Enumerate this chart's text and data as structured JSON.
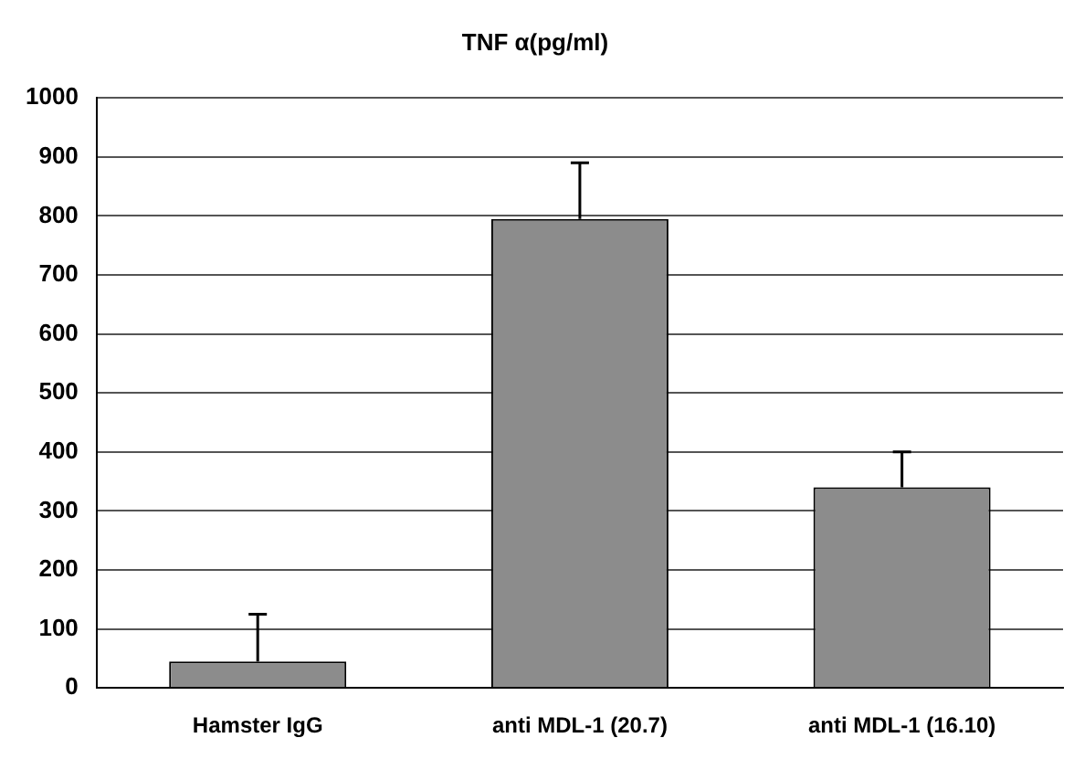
{
  "chart_data": {
    "type": "bar",
    "title": "TNF α(pg/ml)",
    "categories": [
      "Hamster IgG",
      "anti MDL-1 (20.7)",
      "anti MDL-1 (16.10)"
    ],
    "values": [
      45,
      795,
      340
    ],
    "errors": [
      [
        45,
        125
      ],
      [
        795,
        890
      ],
      [
        340,
        400
      ]
    ],
    "color": "#8c8c8c",
    "ylim": [
      0,
      1000
    ],
    "yticks": [
      0,
      100,
      200,
      300,
      400,
      500,
      600,
      700,
      800,
      900,
      1000
    ],
    "grid": "y",
    "legend": false
  }
}
